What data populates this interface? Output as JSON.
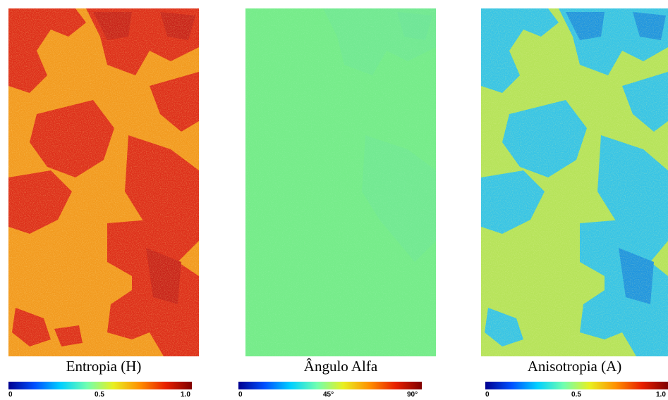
{
  "panels": [
    {
      "caption": "Entropia (H)",
      "ticks": [
        "0",
        "0.5",
        "1.0"
      ],
      "colors": {
        "base": "#f29a1f",
        "patch": "#dd2f1a",
        "patch_dark": "#c8241a",
        "speckle": "#f7b23a"
      }
    },
    {
      "caption": "Ângulo Alfa",
      "ticks": [
        "0",
        "45°",
        "90°"
      ],
      "colors": {
        "base": "#76ec8a",
        "patch": "#6fe4a0",
        "patch_dark": "#66dcb0",
        "speckle": "#86f09a"
      }
    },
    {
      "caption": "Anisotropia (A)",
      "ticks": [
        "0",
        "0.5",
        "1.0"
      ],
      "colors": {
        "base": "#b6e35a",
        "patch": "#37c4e6",
        "patch_dark": "#1f95e0",
        "speckle": "#c8ea66"
      }
    }
  ],
  "colorbar": {
    "stops": [
      "#00008f",
      "#0050ff",
      "#00d0ff",
      "#70ffb0",
      "#e8f020",
      "#ff9000",
      "#e82000",
      "#800000"
    ]
  }
}
